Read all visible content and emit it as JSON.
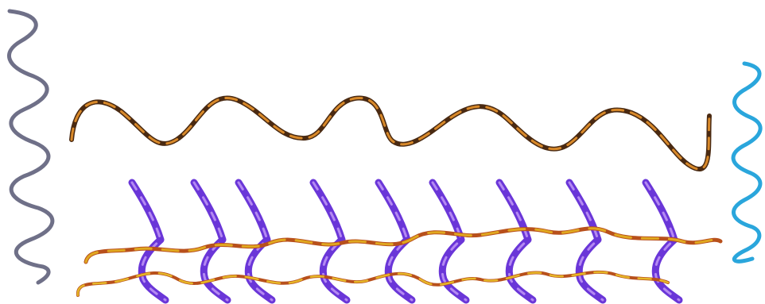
{
  "scene": {
    "background": "#ffffff",
    "description_colors": {
      "left_wavy_line": "#6f7088",
      "top_wavy_line_dark": "#4a2a12",
      "top_wavy_line_light": "#d8892a",
      "right_wavy_line": "#2aa6dc",
      "purple_strokes": "#6a36d8",
      "purple_highlight": "#b489f2",
      "lower_wave_a_dark": "#b8501c",
      "lower_wave_a_light": "#e0a820",
      "lower_wave_b_dark": "#b8501c",
      "lower_wave_b_light": "#e6b728"
    },
    "elements": [
      {
        "name": "left-vertical-squiggle",
        "color_key": "left_wavy_line"
      },
      {
        "name": "top-horizontal-wave",
        "color_key": "top_wavy_line_dark"
      },
      {
        "name": "right-vertical-squiggle",
        "color_key": "right_wavy_line"
      },
      {
        "name": "purple-strand-row",
        "count": 9,
        "color_key": "purple_strokes"
      },
      {
        "name": "lower-wave-upper",
        "color_key": "lower_wave_a_dark"
      },
      {
        "name": "lower-wave-lower",
        "color_key": "lower_wave_b_dark"
      }
    ]
  }
}
